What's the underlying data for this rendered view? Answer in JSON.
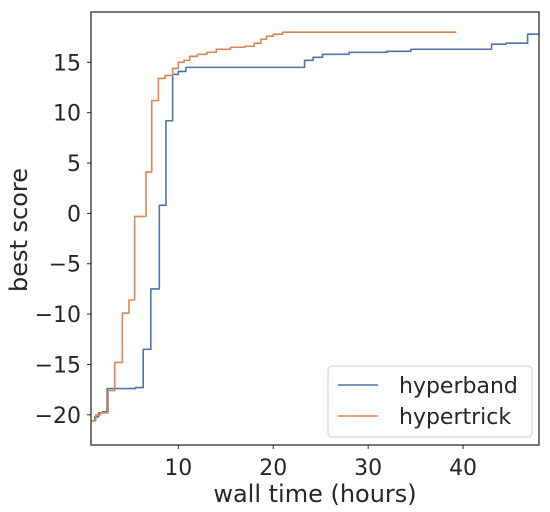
{
  "chart_data": {
    "type": "line",
    "title": "",
    "xlabel": "wall time (hours)",
    "ylabel": "best score",
    "xlim": [
      0.8,
      48
    ],
    "ylim": [
      -23,
      20
    ],
    "xticks": [
      10,
      20,
      30,
      40
    ],
    "yticks": [
      -20,
      -15,
      -10,
      -5,
      0,
      5,
      10,
      15
    ],
    "ytick_labels": [
      "−20",
      "−15",
      "−10",
      "−5",
      "0",
      "5",
      "10",
      "15"
    ],
    "grid": false,
    "legend_position": "lower-right",
    "series": [
      {
        "name": "hyperband",
        "color": "#4c72b0",
        "x": [
          0.8,
          1.2,
          1.2,
          1.6,
          1.6,
          2.0,
          2.0,
          2.5,
          2.5,
          3.5,
          3.5,
          5.5,
          5.5,
          6.3,
          6.3,
          7.1,
          7.1,
          8.0,
          8.0,
          8.7,
          8.7,
          9.4,
          9.4,
          10.0,
          10.0,
          10.8,
          10.8,
          23.3,
          23.3,
          24.2,
          24.2,
          25.2,
          25.2,
          28.0,
          28.0,
          32.0,
          32.0,
          34.5,
          34.5,
          43.0,
          43.0,
          44.5,
          44.5,
          46.8,
          46.8,
          48.0
        ],
        "y": [
          -20.6,
          -20.6,
          -20.2,
          -20.2,
          -19.8,
          -19.8,
          -19.7,
          -19.7,
          -17.4,
          -17.4,
          -17.4,
          -17.4,
          -17.3,
          -17.3,
          -13.5,
          -13.5,
          -7.5,
          -7.5,
          0.8,
          0.8,
          9.2,
          9.2,
          13.8,
          13.8,
          14.1,
          14.1,
          14.5,
          14.5,
          15.2,
          15.2,
          15.5,
          15.5,
          15.8,
          15.8,
          16.0,
          16.0,
          16.1,
          16.1,
          16.3,
          16.3,
          16.8,
          16.8,
          16.9,
          16.9,
          17.8,
          17.8
        ]
      },
      {
        "name": "hypertrick",
        "color": "#dd8452",
        "x": [
          0.8,
          1.3,
          1.3,
          1.8,
          1.8,
          2.6,
          2.6,
          3.3,
          3.3,
          4.1,
          4.1,
          4.8,
          4.8,
          5.4,
          5.4,
          6.6,
          6.6,
          7.2,
          7.2,
          7.9,
          7.9,
          8.6,
          8.6,
          9.4,
          9.4,
          10.0,
          10.0,
          10.6,
          10.6,
          11.2,
          11.2,
          12.0,
          12.0,
          13.0,
          13.0,
          14.0,
          14.0,
          15.5,
          15.5,
          17.0,
          17.0,
          18.0,
          18.0,
          18.7,
          18.7,
          19.3,
          19.3,
          20.0,
          20.0,
          21.0,
          21.0,
          39.3
        ],
        "y": [
          -20.6,
          -20.6,
          -20.0,
          -20.0,
          -19.8,
          -19.8,
          -17.6,
          -17.6,
          -14.8,
          -14.8,
          -9.9,
          -9.9,
          -8.6,
          -8.6,
          -0.3,
          -0.3,
          4.1,
          4.1,
          11.2,
          11.2,
          13.4,
          13.4,
          13.7,
          13.7,
          14.4,
          14.4,
          15.0,
          15.0,
          15.2,
          15.2,
          15.6,
          15.6,
          15.8,
          15.8,
          16.0,
          16.0,
          16.3,
          16.3,
          16.5,
          16.5,
          16.6,
          16.6,
          16.9,
          16.9,
          17.3,
          17.3,
          17.6,
          17.6,
          17.8,
          17.8,
          18.0,
          18.0
        ]
      }
    ]
  }
}
